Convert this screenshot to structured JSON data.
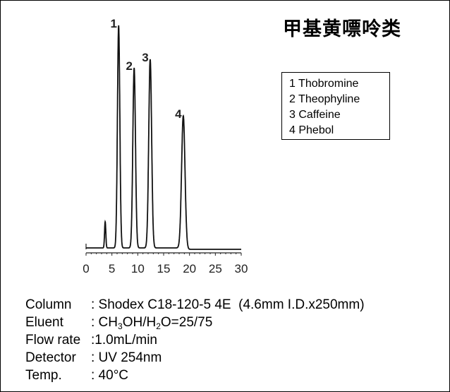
{
  "title": "甲基黄嘌呤类",
  "legend": [
    "1 Thobromine",
    "2 Theophyline",
    "3 Caffeine",
    "4 Phebol"
  ],
  "conditions": {
    "column": {
      "label": "Column",
      "value": ": Shodex C18-120-5 4E  (4.6mm I.D.x250mm)"
    },
    "eluent": {
      "label": "Eluent",
      "pre": ": CH",
      "s1": "3",
      "mid": "OH/H",
      "s2": "2",
      "post": "O=25/75"
    },
    "flow": {
      "label": "Flow rate",
      "value": ":1.0mL/min"
    },
    "detector": {
      "label": "Detector",
      "value": ": UV 254nm"
    },
    "temp": {
      "label": "Temp.",
      "value": ": 40°C"
    }
  },
  "chart_data": {
    "type": "line",
    "xlabel": "",
    "ylabel": "",
    "xlim": [
      0,
      30
    ],
    "xticks": [
      "0",
      "5",
      "10",
      "15",
      "20",
      "25",
      "30"
    ],
    "grid": false,
    "peaks": [
      {
        "label": "",
        "time": 3.7,
        "height": 37
      },
      {
        "label": "1",
        "time": 6.3,
        "height": 315
      },
      {
        "label": "2",
        "time": 9.3,
        "height": 255
      },
      {
        "label": "3",
        "time": 12.4,
        "height": 267
      },
      {
        "label": "4",
        "time": 18.8,
        "height": 187
      }
    ]
  }
}
